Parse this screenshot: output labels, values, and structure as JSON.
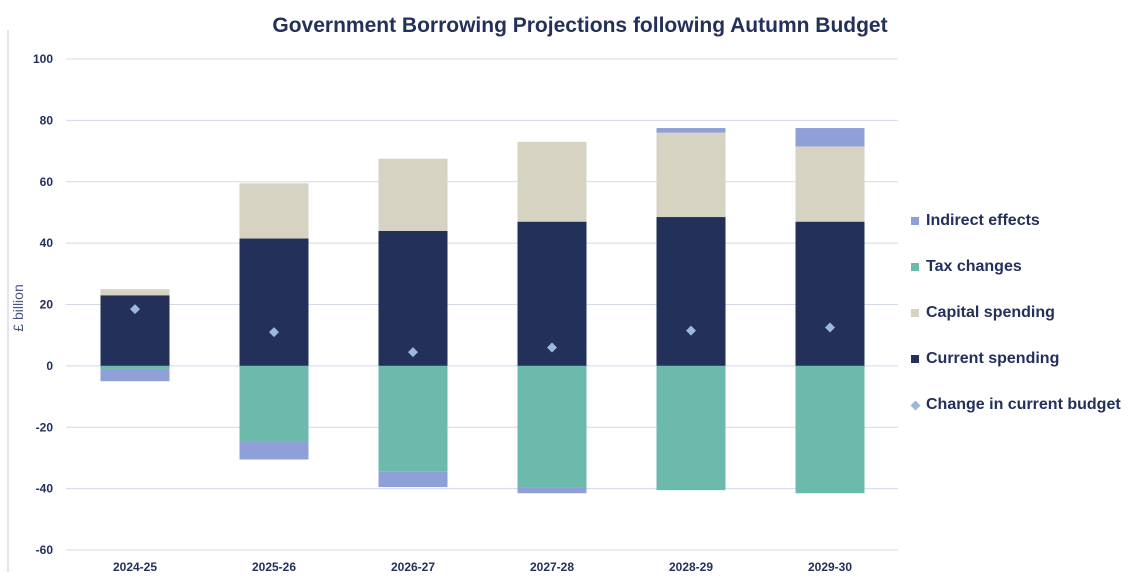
{
  "chart_data": {
    "type": "bar",
    "stacked": true,
    "title": "Government Borrowing Projections following Autumn Budget",
    "xlabel": "",
    "ylabel": "£ billion",
    "ylim": [
      -60,
      100
    ],
    "yticks": [
      -60,
      -40,
      -20,
      0,
      20,
      40,
      60,
      80,
      100
    ],
    "grid": true,
    "legend_position": "right",
    "categories": [
      "2024-25",
      "2025-26",
      "2026-27",
      "2027-28",
      "2028-29",
      "2029-30"
    ],
    "series": [
      {
        "name": "Current spending",
        "kind": "bar",
        "color": "#22305a",
        "values": [
          23,
          41.5,
          44,
          47,
          48.5,
          47
        ]
      },
      {
        "name": "Capital spending",
        "kind": "bar",
        "color": "#d6d3c3",
        "values": [
          2,
          18,
          23.5,
          26,
          27.5,
          24.5
        ]
      },
      {
        "name": "Tax changes",
        "kind": "bar",
        "color": "#6cbaab",
        "values": [
          -1,
          -24.5,
          -34.5,
          -39.5,
          -40.5,
          -41.5
        ]
      },
      {
        "name": "Indirect effects",
        "kind": "bar",
        "color": "#8f9fd8",
        "values": [
          -4,
          -6,
          -5,
          -2,
          1.5,
          6
        ]
      },
      {
        "name": "Change in current budget",
        "kind": "marker",
        "color": "#9cb9d9",
        "values": [
          18.5,
          11,
          4.5,
          6,
          11.5,
          12.5
        ]
      }
    ],
    "legend_order": [
      "Indirect effects",
      "Tax changes",
      "Capital spending",
      "Current spending",
      "Change in current budget"
    ]
  }
}
